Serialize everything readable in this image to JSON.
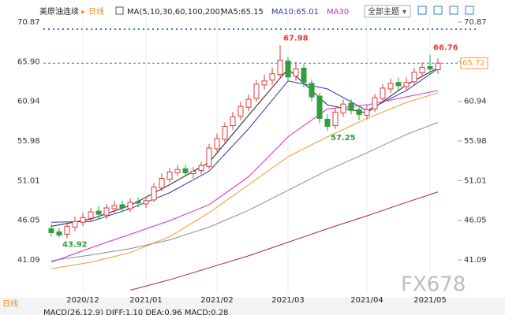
{
  "chart_data": {
    "type": "candlestick",
    "symbol": "美原油连续",
    "period": "日线",
    "ma_label": "MA(5,10,30,60,100,200)",
    "theme_button": "全部主题",
    "macd_label": "MACD(26,12,9) DIFF:1.10 DEA:0.96 MACD:0.28",
    "watermark": "FX678",
    "categories": [
      null,
      null,
      null,
      null,
      "2020/12",
      null,
      null,
      null,
      null,
      null,
      null,
      null,
      "2021/01",
      null,
      null,
      null,
      null,
      null,
      null,
      null,
      null,
      "2021/02",
      null,
      null,
      null,
      null,
      null,
      null,
      null,
      null,
      "2021/03",
      null,
      null,
      null,
      null,
      null,
      null,
      null,
      null,
      null,
      "2021/04",
      null,
      null,
      null,
      null,
      null,
      null,
      null,
      "2021/05",
      null
    ],
    "open": [
      45.0,
      44.6,
      44.3,
      45.2,
      45.8,
      46.3,
      47.2,
      46.7,
      47.5,
      48.0,
      47.5,
      48.4,
      48.1,
      48.6,
      50.1,
      51.2,
      52.0,
      52.5,
      51.9,
      52.3,
      52.8,
      55.0,
      56.2,
      57.9,
      59.1,
      60.2,
      61.3,
      63.0,
      63.6,
      64.3,
      66.0,
      64.1,
      65.1,
      63.2,
      61.6,
      58.7,
      57.9,
      59.5,
      60.7,
      59.9,
      59.2,
      60.0,
      61.3,
      62.5,
      63.3,
      62.8,
      63.4,
      64.5,
      65.3,
      64.9
    ],
    "high": [
      45.6,
      45.1,
      45.8,
      46.5,
      47.0,
      47.6,
      47.8,
      48.1,
      48.5,
      48.5,
      48.8,
      48.9,
      49.0,
      50.7,
      51.9,
      52.6,
      53.0,
      53.0,
      52.7,
      53.4,
      55.6,
      56.9,
      58.3,
      59.6,
      60.9,
      61.8,
      63.6,
      64.3,
      65.2,
      67.98,
      66.5,
      65.9,
      65.6,
      63.7,
      62.0,
      59.3,
      60.1,
      61.2,
      61.2,
      60.4,
      60.5,
      61.9,
      63.1,
      63.8,
      63.9,
      63.9,
      65.1,
      65.8,
      66.76,
      66.3
    ],
    "low": [
      44.0,
      43.92,
      43.8,
      44.7,
      45.3,
      45.9,
      46.3,
      46.2,
      47.0,
      47.1,
      47.1,
      47.7,
      47.6,
      48.3,
      49.7,
      50.8,
      51.6,
      51.5,
      51.3,
      51.8,
      52.5,
      54.6,
      55.8,
      57.4,
      58.6,
      59.7,
      60.9,
      62.4,
      63.0,
      63.9,
      63.4,
      63.5,
      62.7,
      60.9,
      58.2,
      57.25,
      57.5,
      59.0,
      59.3,
      58.6,
      58.7,
      59.6,
      60.8,
      62.0,
      62.2,
      62.2,
      62.9,
      64.0,
      64.3,
      64.4
    ],
    "close": [
      44.5,
      44.2,
      45.3,
      45.9,
      46.4,
      47.1,
      46.8,
      47.6,
      47.9,
      47.6,
      48.3,
      48.2,
      48.5,
      50.2,
      51.3,
      52.1,
      52.4,
      52.0,
      52.2,
      52.9,
      55.1,
      56.3,
      57.8,
      59.0,
      60.3,
      61.2,
      63.1,
      63.5,
      64.4,
      66.1,
      64.0,
      65.0,
      63.3,
      61.5,
      58.8,
      57.8,
      59.6,
      60.6,
      59.8,
      59.3,
      59.9,
      61.4,
      62.6,
      63.2,
      62.9,
      63.3,
      64.6,
      65.2,
      65.0,
      65.72
    ],
    "up_color": "#e03a3a",
    "down_color": "#2e9e3e",
    "annotations": [
      1,
      29,
      35,
      48
    ],
    "ylim": [
      37.15,
      71.66
    ],
    "yticks": [
      70.87,
      65.9,
      60.94,
      55.98,
      51.01,
      46.05,
      41.09
    ],
    "yticks_labels": [
      "70.87",
      "65.90",
      "60.94",
      "55.98",
      "51.01",
      "46.05",
      "41.09"
    ],
    "last_price": {
      "value": 65.72,
      "label": "65.72"
    },
    "series": [
      {
        "name": "MA5:65.15",
        "color": "#222222",
        "x": [
          0,
          5,
          10,
          15,
          20,
          25,
          30,
          35,
          40,
          45,
          49
        ],
        "values": [
          45.3,
          46.2,
          47.9,
          50.5,
          53.3,
          59.2,
          65.0,
          60.5,
          59.5,
          63.0,
          65.15
        ]
      },
      {
        "name": "MA10:65.01",
        "color": "#2b3bb5",
        "x": [
          0,
          5,
          10,
          15,
          20,
          25,
          30,
          35,
          40,
          45,
          49
        ],
        "values": [
          45.8,
          45.9,
          47.5,
          49.5,
          52.2,
          57.5,
          63.5,
          62.5,
          59.8,
          62.3,
          65.01
        ]
      },
      {
        "name": "MA30",
        "color": "#d22ad2",
        "x": [
          0,
          5,
          10,
          15,
          20,
          25,
          30,
          35,
          40,
          45,
          49
        ],
        "values": [
          40.8,
          42.6,
          44.3,
          46.0,
          48.0,
          51.5,
          56.5,
          60.0,
          60.5,
          61.5,
          62.3
        ]
      },
      {
        "color": "#f29a2e",
        "x": [
          0,
          5,
          10,
          15,
          20,
          25,
          30,
          35,
          40,
          45,
          49
        ],
        "values": [
          40.0,
          40.8,
          42.0,
          44.0,
          47.0,
          50.5,
          54.0,
          56.5,
          58.8,
          60.8,
          62.0
        ]
      },
      {
        "color": "#8c8c8c",
        "x": [
          0,
          5,
          10,
          15,
          20,
          25,
          30,
          35,
          40,
          45,
          49
        ],
        "values": [
          41.0,
          41.7,
          42.5,
          43.6,
          45.2,
          47.3,
          49.8,
          52.3,
          54.5,
          56.8,
          58.3
        ]
      },
      {
        "color": "#b02a2a",
        "x": [
          0,
          5,
          10,
          15,
          20,
          25,
          30,
          35,
          40,
          45,
          49
        ],
        "values": [
          null,
          null,
          37.3,
          38.6,
          40.1,
          41.6,
          43.3,
          45.0,
          46.6,
          48.3,
          49.6
        ]
      }
    ]
  }
}
